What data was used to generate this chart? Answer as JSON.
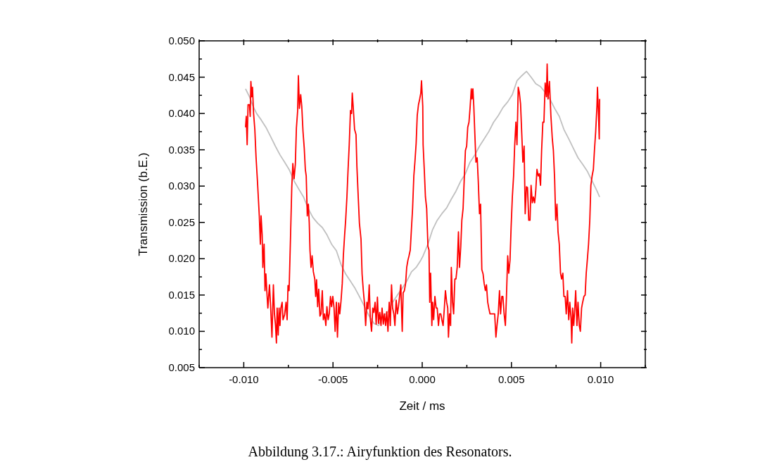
{
  "chart_data": {
    "type": "line",
    "xlabel": "Zeit / ms",
    "ylabel": "Transmission (b.E.)",
    "annotations": [
      "Abbildung 3.17.: Airyfunktion des Resonators."
    ],
    "xlim": [
      -0.0125,
      0.0125
    ],
    "xticks": [
      {
        "value": -0.0125,
        "label": null
      },
      {
        "value": -0.01,
        "label": "-0.010"
      },
      {
        "value": -0.0075,
        "label": null
      },
      {
        "value": -0.005,
        "label": "-0.005"
      },
      {
        "value": -0.0025,
        "label": null
      },
      {
        "value": 0,
        "label": "0.000"
      },
      {
        "value": 0.0025,
        "label": null
      },
      {
        "value": 0.005,
        "label": "0.005"
      },
      {
        "value": 0.0075,
        "label": null
      },
      {
        "value": 0.01,
        "label": "0.010"
      },
      {
        "value": 0.0125,
        "label": null
      }
    ],
    "ylim": [
      0.005,
      0.05
    ],
    "yticks": [
      {
        "value": 0.005,
        "label": "0.005"
      },
      {
        "value": 0.0075,
        "label": null
      },
      {
        "value": 0.01,
        "label": "0.010"
      },
      {
        "value": 0.0125,
        "label": null
      },
      {
        "value": 0.015,
        "label": "0.015"
      },
      {
        "value": 0.0175,
        "label": null
      },
      {
        "value": 0.02,
        "label": "0.020"
      },
      {
        "value": 0.0225,
        "label": null
      },
      {
        "value": 0.025,
        "label": "0.025"
      },
      {
        "value": 0.0275,
        "label": null
      },
      {
        "value": 0.03,
        "label": "0.030"
      },
      {
        "value": 0.0325,
        "label": null
      },
      {
        "value": 0.035,
        "label": "0.035"
      },
      {
        "value": 0.0375,
        "label": null
      },
      {
        "value": 0.04,
        "label": "0.040"
      },
      {
        "value": 0.0425,
        "label": null
      },
      {
        "value": 0.045,
        "label": "0.045"
      },
      {
        "value": 0.0475,
        "label": null
      },
      {
        "value": 0.05,
        "label": "0.050"
      }
    ],
    "marker": "none",
    "line_style": "solid",
    "series": [
      {
        "color": "#c0c0c0",
        "x": [
          -0.0099,
          -0.00968,
          -0.00948,
          -0.00928,
          -0.00902,
          -0.00876,
          -0.00849,
          -0.00823,
          -0.00797,
          -0.00771,
          -0.00744,
          -0.00718,
          -0.00692,
          -0.00665,
          -0.00639,
          -0.00613,
          -0.00586,
          -0.0056,
          -0.00534,
          -0.00508,
          -0.00481,
          -0.00455,
          -0.00429,
          -0.00402,
          -0.00376,
          -0.0035,
          -0.00323,
          -0.00297,
          -0.00271,
          -0.00245,
          -0.00218,
          -0.00192,
          -0.00166,
          -0.00139,
          -0.00113,
          -0.00087,
          -0.0006,
          -0.00034,
          -8e-05,
          5e-05,
          0.00032,
          0.00058,
          0.00084,
          0.0011,
          0.00137,
          0.00163,
          0.00189,
          0.00216,
          0.00242,
          0.00268,
          0.00295,
          0.00321,
          0.00347,
          0.00373,
          0.004,
          0.00426,
          0.00452,
          0.00479,
          0.00505,
          0.00531,
          0.00558,
          0.00584,
          0.0061,
          0.00636,
          0.00663,
          0.00689,
          0.00715,
          0.00742,
          0.00768,
          0.00794,
          0.00821,
          0.00847,
          0.00873,
          0.00899,
          0.00926,
          0.00952,
          0.00978,
          0.00994
        ],
        "values": [
          0.0434,
          0.0423,
          0.041,
          0.04,
          0.0391,
          0.0381,
          0.0368,
          0.0355,
          0.0343,
          0.0333,
          0.0322,
          0.0307,
          0.0296,
          0.0285,
          0.0269,
          0.0257,
          0.0249,
          0.0243,
          0.0233,
          0.022,
          0.0211,
          0.0192,
          0.0179,
          0.0169,
          0.0159,
          0.0147,
          0.0134,
          0.0121,
          0.0111,
          0.0108,
          0.0121,
          0.0127,
          0.014,
          0.015,
          0.0159,
          0.0169,
          0.0182,
          0.0188,
          0.0198,
          0.0204,
          0.022,
          0.024,
          0.0253,
          0.0262,
          0.027,
          0.0282,
          0.0293,
          0.0307,
          0.0317,
          0.0333,
          0.0343,
          0.0355,
          0.0365,
          0.0375,
          0.0388,
          0.0397,
          0.0408,
          0.0416,
          0.0426,
          0.0445,
          0.0452,
          0.0458,
          0.045,
          0.0441,
          0.0437,
          0.0429,
          0.042,
          0.0407,
          0.0396,
          0.0378,
          0.0365,
          0.0352,
          0.0339,
          0.033,
          0.032,
          0.0307,
          0.0294,
          0.0285
        ]
      },
      {
        "color": "#ff0000",
        "x": [
          -0.0099,
          -0.00986,
          -0.00981,
          -0.00976,
          -0.00968,
          -0.00964,
          -0.0096,
          -0.00955,
          -0.00951,
          -0.00945,
          -0.00938,
          -0.00931,
          -0.00922,
          -0.00913,
          -0.00907,
          -0.00903,
          -0.00897,
          -0.00893,
          -0.00886,
          -0.00881,
          -0.00876,
          -0.00871,
          -0.00865,
          -0.00856,
          -0.00849,
          -0.00842,
          -0.00834,
          -0.00828,
          -0.00822,
          -0.00817,
          -0.00813,
          -0.00807,
          -0.00802,
          -0.00797,
          -0.00792,
          -0.00785,
          -0.0078,
          -0.00771,
          -0.00763,
          -0.00757,
          -0.00752,
          -0.00746,
          -0.00738,
          -0.00731,
          -0.00725,
          -0.00718,
          -0.00711,
          -0.00705,
          -0.00698,
          -0.00694,
          -0.00688,
          -0.00681,
          -0.00675,
          -0.00668,
          -0.00661,
          -0.00655,
          -0.0065,
          -0.00644,
          -0.00638,
          -0.00633,
          -0.00629,
          -0.00623,
          -0.00617,
          -0.0061,
          -0.00602,
          -0.00597,
          -0.00592,
          -0.00586,
          -0.0058,
          -0.00573,
          -0.00567,
          -0.0056,
          -0.00554,
          -0.00547,
          -0.0054,
          -0.00534,
          -0.00527,
          -0.00521,
          -0.00514,
          -0.00508,
          -0.00501,
          -0.00494,
          -0.00488,
          -0.00481,
          -0.00475,
          -0.00468,
          -0.00462,
          -0.00455,
          -0.00448,
          -0.00442,
          -0.00435,
          -0.00429,
          -0.00422,
          -0.00416,
          -0.00409,
          -0.00402,
          -0.00396,
          -0.00392,
          -0.00387,
          -0.00379,
          -0.00371,
          -0.00366,
          -0.00358,
          -0.00352,
          -0.00343,
          -0.00337,
          -0.0033,
          -0.00323,
          -0.00317,
          -0.0031,
          -0.00304,
          -0.00297,
          -0.00291,
          -0.00284,
          -0.00277,
          -0.00271,
          -0.00264,
          -0.00258,
          -0.00251,
          -0.00245,
          -0.00238,
          -0.00231,
          -0.00225,
          -0.00218,
          -0.00212,
          -0.00205,
          -0.00199,
          -0.00192,
          -0.00185,
          -0.00179,
          -0.00172,
          -0.00166,
          -0.00159,
          -0.00153,
          -0.00146,
          -0.00139,
          -0.00133,
          -0.00126,
          -0.0012,
          -0.00112,
          -0.00107,
          -0.001,
          -0.00093,
          -0.00087,
          -0.0008,
          -0.00074,
          -0.00067,
          -0.0006,
          -0.00054,
          -0.00047,
          -0.00041,
          -0.00034,
          -0.00028,
          -0.00021,
          -0.00014,
          -8e-05,
          -4e-05,
          3e-05,
          5e-05,
          0.00012,
          0.00018,
          0.00025,
          0.00032,
          0.00038,
          0.00042,
          0.00047,
          0.00054,
          0.00058,
          0.00064,
          0.00071,
          0.00078,
          0.00084,
          0.00091,
          0.00097,
          0.00104,
          0.0011,
          0.00117,
          0.00124,
          0.0013,
          0.00137,
          0.00143,
          0.00147,
          0.00153,
          0.00159,
          0.00163,
          0.0017,
          0.00176,
          0.00183,
          0.00189,
          0.00196,
          0.00203,
          0.00209,
          0.00216,
          0.00222,
          0.00229,
          0.00235,
          0.00242,
          0.00249,
          0.00255,
          0.00262,
          0.00268,
          0.00275,
          0.00279,
          0.00284,
          0.00289,
          0.00295,
          0.00301,
          0.00308,
          0.00314,
          0.00321,
          0.00327,
          0.00334,
          0.00341,
          0.00347,
          0.00354,
          0.0036,
          0.00367,
          0.00373,
          0.0038,
          0.00393,
          0.00406,
          0.00413,
          0.00419,
          0.00426,
          0.00433,
          0.00439,
          0.00446,
          0.00452,
          0.00459,
          0.00466,
          0.00472,
          0.00479,
          0.00485,
          0.00492,
          0.00498,
          0.00505,
          0.00512,
          0.00518,
          0.00525,
          0.00531,
          0.00538,
          0.00544,
          0.00551,
          0.00558,
          0.00564,
          0.00571,
          0.00577,
          0.00584,
          0.0059,
          0.00597,
          0.00604,
          0.0061,
          0.00617,
          0.00623,
          0.0063,
          0.00636,
          0.00643,
          0.0065,
          0.00656,
          0.00663,
          0.00669,
          0.00676,
          0.00682,
          0.00689,
          0.00696,
          0.007,
          0.00705,
          0.00713,
          0.00721,
          0.00729,
          0.00735,
          0.00742,
          0.00748,
          0.00755,
          0.00761,
          0.00768,
          0.00775,
          0.00781,
          0.00788,
          0.00794,
          0.00801,
          0.00807,
          0.00814,
          0.00821,
          0.00827,
          0.00834,
          0.00838,
          0.00843,
          0.00849,
          0.00855,
          0.0086,
          0.00867,
          0.00873,
          0.0088,
          0.00886,
          0.00893,
          0.00899,
          0.00906,
          0.00913,
          0.00919,
          0.00926,
          0.00932,
          0.00939,
          0.00945,
          0.00952,
          0.00959,
          0.00965,
          0.00972,
          0.00979,
          0.00982,
          0.00988,
          0.00992,
          0.00994
        ],
        "values": [
          0.0381,
          0.0396,
          0.0357,
          0.0412,
          0.0412,
          0.0396,
          0.0444,
          0.0423,
          0.0436,
          0.04,
          0.0378,
          0.0339,
          0.0301,
          0.0259,
          0.022,
          0.0259,
          0.0233,
          0.0188,
          0.022,
          0.0156,
          0.0179,
          0.0156,
          0.0132,
          0.0164,
          0.0132,
          0.0092,
          0.0164,
          0.0124,
          0.0108,
          0.0084,
          0.0132,
          0.0095,
          0.0132,
          0.0108,
          0.0132,
          0.014,
          0.0116,
          0.0123,
          0.014,
          0.0116,
          0.0163,
          0.0156,
          0.023,
          0.0298,
          0.0331,
          0.031,
          0.033,
          0.038,
          0.0404,
          0.0452,
          0.0407,
          0.0426,
          0.041,
          0.0375,
          0.0352,
          0.0323,
          0.0314,
          0.0259,
          0.0275,
          0.0249,
          0.0212,
          0.0188,
          0.0204,
          0.0182,
          0.0172,
          0.0148,
          0.0171,
          0.0134,
          0.0158,
          0.0121,
          0.0124,
          0.0156,
          0.0116,
          0.0124,
          0.0108,
          0.0134,
          0.0116,
          0.0124,
          0.0148,
          0.0134,
          0.0148,
          0.0132,
          0.01,
          0.014,
          0.0092,
          0.0139,
          0.0124,
          0.0142,
          0.0166,
          0.0204,
          0.0232,
          0.0253,
          0.0285,
          0.032,
          0.0357,
          0.0404,
          0.04,
          0.0428,
          0.041,
          0.0378,
          0.0371,
          0.0327,
          0.0282,
          0.0249,
          0.0227,
          0.0179,
          0.0156,
          0.0137,
          0.0108,
          0.014,
          0.0131,
          0.0164,
          0.0118,
          0.01,
          0.0132,
          0.0126,
          0.014,
          0.011,
          0.0147,
          0.0111,
          0.0126,
          0.0108,
          0.0132,
          0.011,
          0.0124,
          0.0108,
          0.0127,
          0.01,
          0.014,
          0.0108,
          0.0164,
          0.0132,
          0.0124,
          0.0108,
          0.0143,
          0.0124,
          0.0134,
          0.015,
          0.0164,
          0.01,
          0.0153,
          0.0156,
          0.0166,
          0.0188,
          0.0198,
          0.0204,
          0.0212,
          0.0243,
          0.0269,
          0.0314,
          0.0333,
          0.0359,
          0.0397,
          0.0412,
          0.042,
          0.0428,
          0.0445,
          0.041,
          0.0357,
          0.032,
          0.0285,
          0.0269,
          0.0217,
          0.0212,
          0.014,
          0.018,
          0.0108,
          0.014,
          0.0116,
          0.0148,
          0.0132,
          0.0132,
          0.0108,
          0.0124,
          0.0124,
          0.0116,
          0.0108,
          0.0132,
          0.0156,
          0.014,
          0.0132,
          0.0092,
          0.0124,
          0.0108,
          0.0188,
          0.014,
          0.0124,
          0.0172,
          0.0172,
          0.0188,
          0.0237,
          0.0188,
          0.0217,
          0.0253,
          0.0269,
          0.0307,
          0.0349,
          0.0355,
          0.0381,
          0.0388,
          0.0407,
          0.0434,
          0.042,
          0.0434,
          0.041,
          0.0371,
          0.0333,
          0.0339,
          0.0307,
          0.0262,
          0.0275,
          0.0185,
          0.0179,
          0.0166,
          0.0156,
          0.0164,
          0.014,
          0.0132,
          0.0124,
          0.0124,
          0.0124,
          0.0092,
          0.0108,
          0.0124,
          0.0156,
          0.0124,
          0.0148,
          0.0148,
          0.0124,
          0.0108,
          0.0148,
          0.0204,
          0.018,
          0.0198,
          0.0243,
          0.0285,
          0.0314,
          0.0355,
          0.0388,
          0.0357,
          0.0436,
          0.0429,
          0.0413,
          0.0371,
          0.0333,
          0.0355,
          0.0262,
          0.0299,
          0.0298,
          0.0253,
          0.0253,
          0.0301,
          0.0277,
          0.0285,
          0.0277,
          0.0293,
          0.0323,
          0.0314,
          0.0317,
          0.0301,
          0.0349,
          0.0388,
          0.0388,
          0.0442,
          0.0423,
          0.0468,
          0.042,
          0.0444,
          0.0397,
          0.0365,
          0.0349,
          0.031,
          0.0253,
          0.0275,
          0.0237,
          0.022,
          0.018,
          0.0172,
          0.018,
          0.0148,
          0.0148,
          0.0124,
          0.0156,
          0.0116,
          0.014,
          0.0118,
          0.0084,
          0.0132,
          0.0108,
          0.0132,
          0.0156,
          0.0108,
          0.014,
          0.0108,
          0.01,
          0.0132,
          0.014,
          0.0148,
          0.015,
          0.018,
          0.0201,
          0.022,
          0.0253,
          0.0301,
          0.0314,
          0.0323,
          0.0349,
          0.0375,
          0.041,
          0.0436,
          0.0397,
          0.0365,
          0.042
        ]
      }
    ]
  }
}
